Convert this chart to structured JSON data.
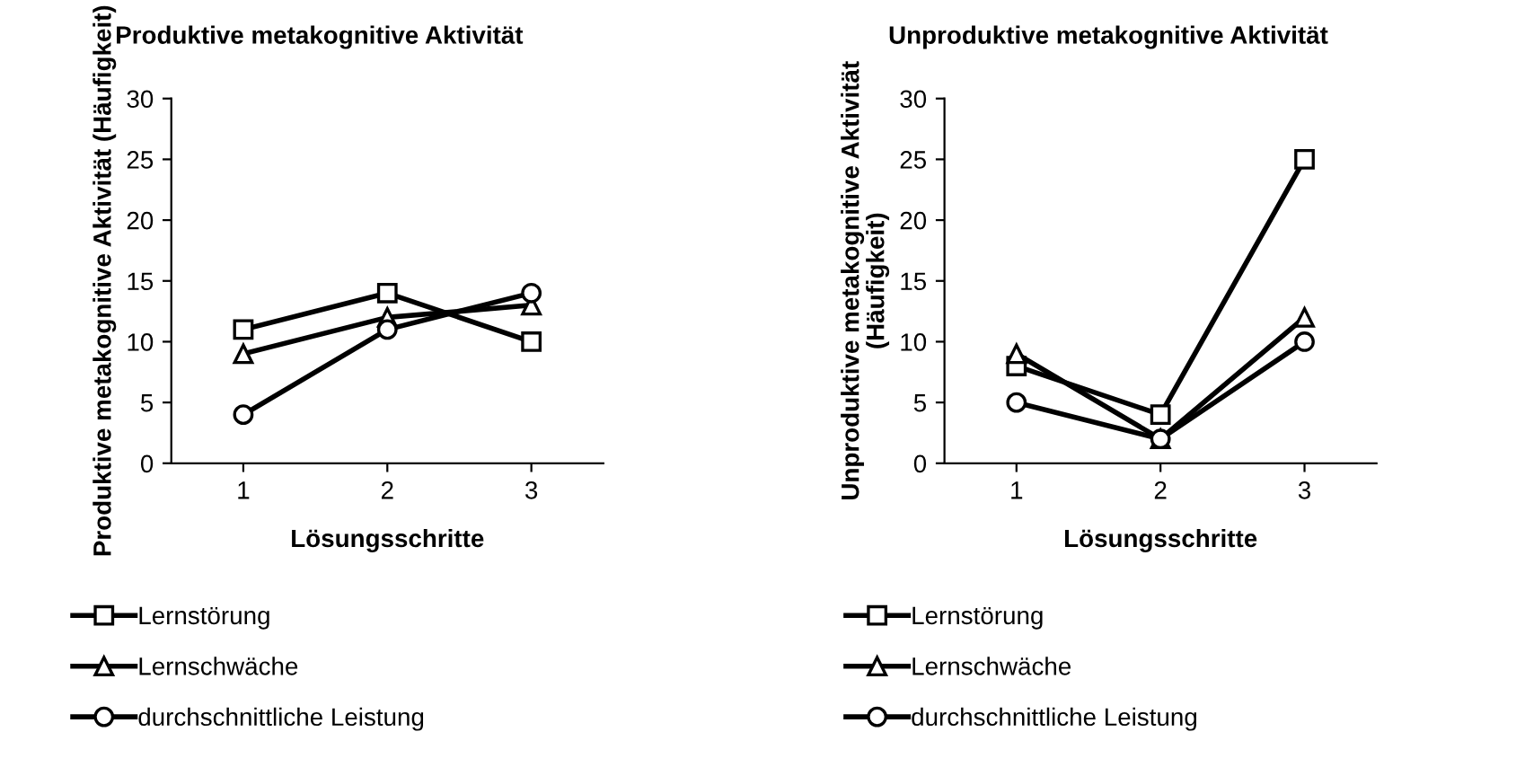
{
  "chart_data": [
    {
      "type": "line",
      "title": "Produktive metakognitive Aktivität",
      "xlabel": "Lösungsschritte",
      "ylabel": "Produktive metakognitive Aktivität (Häufigkeit)",
      "categories": [
        "1",
        "2",
        "3"
      ],
      "ylim": [
        0,
        30
      ],
      "yticks": [
        0,
        5,
        10,
        15,
        20,
        25,
        30
      ],
      "grid": false,
      "legend": "bottom",
      "line_style": "solid",
      "series": [
        {
          "name": "Lernstörung",
          "color": "#000000",
          "marker": "square",
          "values": [
            11,
            14,
            10
          ]
        },
        {
          "name": "Lernschwäche",
          "color": "#000000",
          "marker": "triangle",
          "values": [
            9,
            12,
            13
          ]
        },
        {
          "name": "durchschnittliche Leistung",
          "color": "#000000",
          "marker": "circle",
          "values": [
            4,
            11,
            14
          ]
        }
      ]
    },
    {
      "type": "line",
      "title": "Unproduktive metakognitive Aktivität",
      "xlabel": "Lösungsschritte",
      "ylabel": "Unproduktive metakognitive Aktivität (Häufigkeit)",
      "categories": [
        "1",
        "2",
        "3"
      ],
      "ylim": [
        0,
        30
      ],
      "yticks": [
        0,
        5,
        10,
        15,
        20,
        25,
        30
      ],
      "grid": false,
      "legend": "bottom",
      "line_style": "solid",
      "series": [
        {
          "name": "Lernstörung",
          "color": "#000000",
          "marker": "square",
          "values": [
            8,
            4,
            25
          ]
        },
        {
          "name": "Lernschwäche",
          "color": "#000000",
          "marker": "triangle",
          "values": [
            9,
            2,
            12
          ]
        },
        {
          "name": "durchschnittliche Leistung",
          "color": "#000000",
          "marker": "circle",
          "values": [
            5,
            2,
            10
          ]
        }
      ]
    }
  ]
}
